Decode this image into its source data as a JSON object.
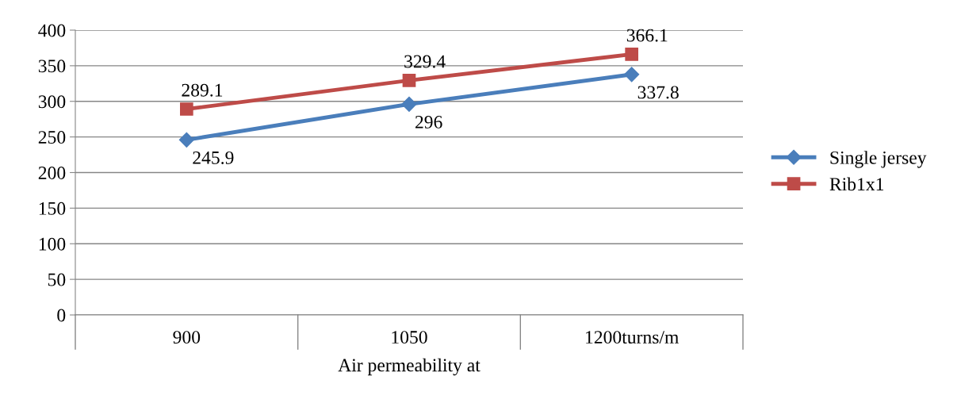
{
  "chart_data": {
    "type": "line",
    "categories": [
      "900",
      "1050",
      "1200turns/m"
    ],
    "xlabel": "Air permeability at",
    "series": [
      {
        "name": "Single jersey",
        "color": "#4a7ebb",
        "marker": "diamond",
        "values": [
          245.9,
          296,
          337.8
        ]
      },
      {
        "name": "Rib1x1",
        "color": "#be4b48",
        "marker": "square",
        "values": [
          289.1,
          329.4,
          366.1
        ]
      }
    ],
    "ylim": [
      0,
      400
    ],
    "yticks": [
      0,
      50,
      100,
      150,
      200,
      250,
      300,
      350,
      400
    ],
    "grid": "y",
    "legend": "right",
    "data_labels": true
  }
}
